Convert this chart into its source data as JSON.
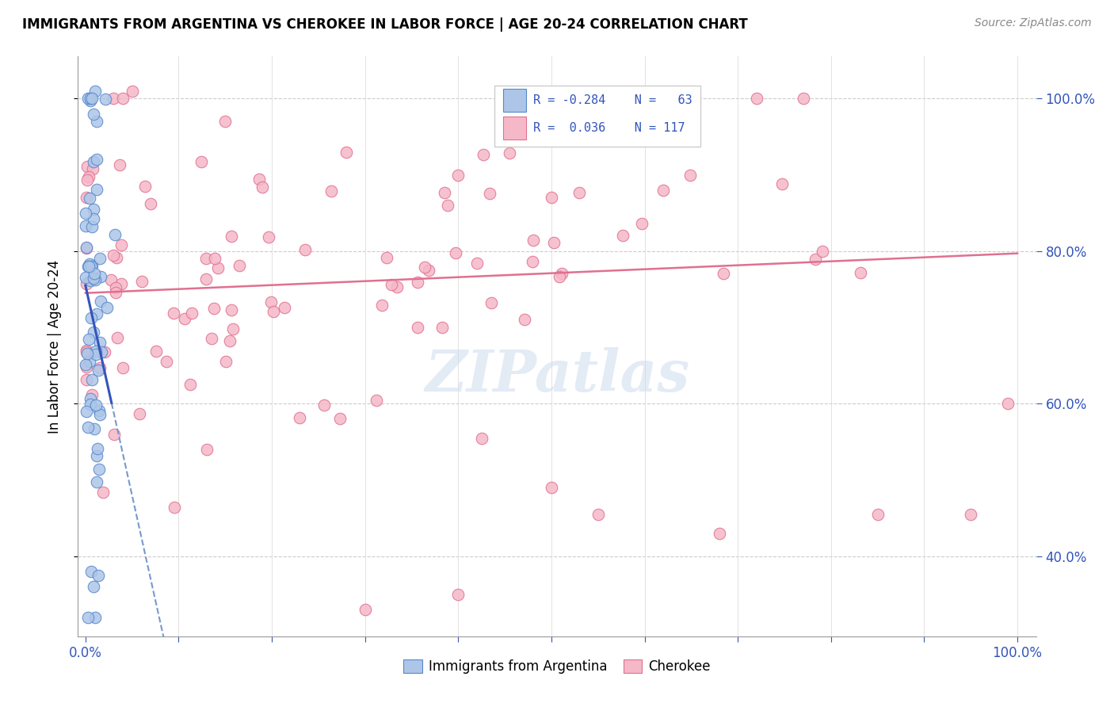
{
  "title": "IMMIGRANTS FROM ARGENTINA VS CHEROKEE IN LABOR FORCE | AGE 20-24 CORRELATION CHART",
  "source": "Source: ZipAtlas.com",
  "ylabel": "In Labor Force | Age 20-24",
  "argentina_color": "#adc6e8",
  "cherokee_color": "#f5b8c8",
  "argentina_edge": "#5588cc",
  "cherokee_edge": "#e07090",
  "trend_argentina_color": "#3355bb",
  "trend_cherokee_color": "#e07090",
  "trend_dashed_color": "#7799cc",
  "legend_R_argentina": "-0.284",
  "legend_N_argentina": "63",
  "legend_R_cherokee": "0.036",
  "legend_N_cherokee": "117",
  "watermark": "ZIPatlas",
  "R_color": "#3355bb",
  "N_color": "#3355bb"
}
